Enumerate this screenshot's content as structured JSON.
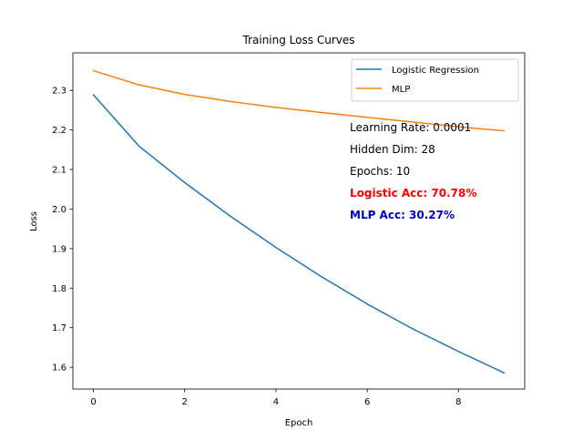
{
  "chart_data": {
    "type": "line",
    "title": "Training Loss Curves",
    "xlabel": "Epoch",
    "ylabel": "Loss",
    "xlim": [
      -0.45,
      9.45
    ],
    "ylim": [
      1.545,
      2.395
    ],
    "xticks": [
      0,
      2,
      4,
      6,
      8
    ],
    "yticks": [
      1.6,
      1.7,
      1.8,
      1.9,
      2.0,
      2.1,
      2.2,
      2.3
    ],
    "x": [
      0,
      1,
      2,
      3,
      4,
      5,
      6,
      7,
      8,
      9
    ],
    "series": [
      {
        "name": "Logistic Regression",
        "color": "#1f77b4",
        "values": [
          2.289,
          2.159,
          2.067,
          1.982,
          1.903,
          1.829,
          1.76,
          1.697,
          1.64,
          1.586
        ]
      },
      {
        "name": "MLP",
        "color": "#ff7f0e",
        "values": [
          2.35,
          2.314,
          2.29,
          2.272,
          2.257,
          2.244,
          2.232,
          2.22,
          2.208,
          2.198
        ]
      }
    ],
    "legend_position": "upper right",
    "grid": false,
    "annotations": [
      {
        "text": "Learning Rate: 0.0001",
        "color": "#000000",
        "bold": false
      },
      {
        "text": "Hidden Dim: 28",
        "color": "#000000",
        "bold": false
      },
      {
        "text": "Epochs: 10",
        "color": "#000000",
        "bold": false
      },
      {
        "text": "Logistic Acc: 70.78%",
        "color": "#ff0000",
        "bold": true
      },
      {
        "text": "MLP Acc: 30.27%",
        "color": "#0000cd",
        "bold": true
      }
    ]
  }
}
